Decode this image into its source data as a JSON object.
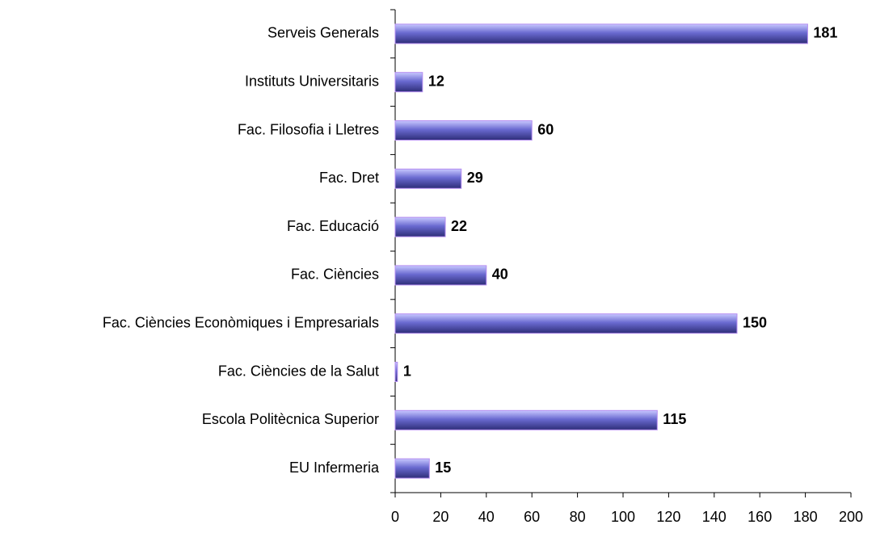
{
  "chart_data": {
    "type": "bar",
    "orientation": "horizontal",
    "categories": [
      "Serveis Generals",
      "Instituts Universitaris",
      "Fac. Filosofia i Lletres",
      "Fac. Dret",
      "Fac. Educació",
      "Fac. Ciències",
      "Fac. Ciències Econòmiques i Empresarials",
      "Fac. Ciències de la Salut",
      "Escola Politècnica Superior",
      "EU Infermeria"
    ],
    "values": [
      181,
      12,
      60,
      29,
      22,
      40,
      150,
      1,
      115,
      15
    ],
    "color": "#6a6ad0",
    "xlim": [
      0,
      200
    ],
    "xticks": [
      0,
      20,
      40,
      60,
      80,
      100,
      120,
      140,
      160,
      180,
      200
    ]
  }
}
